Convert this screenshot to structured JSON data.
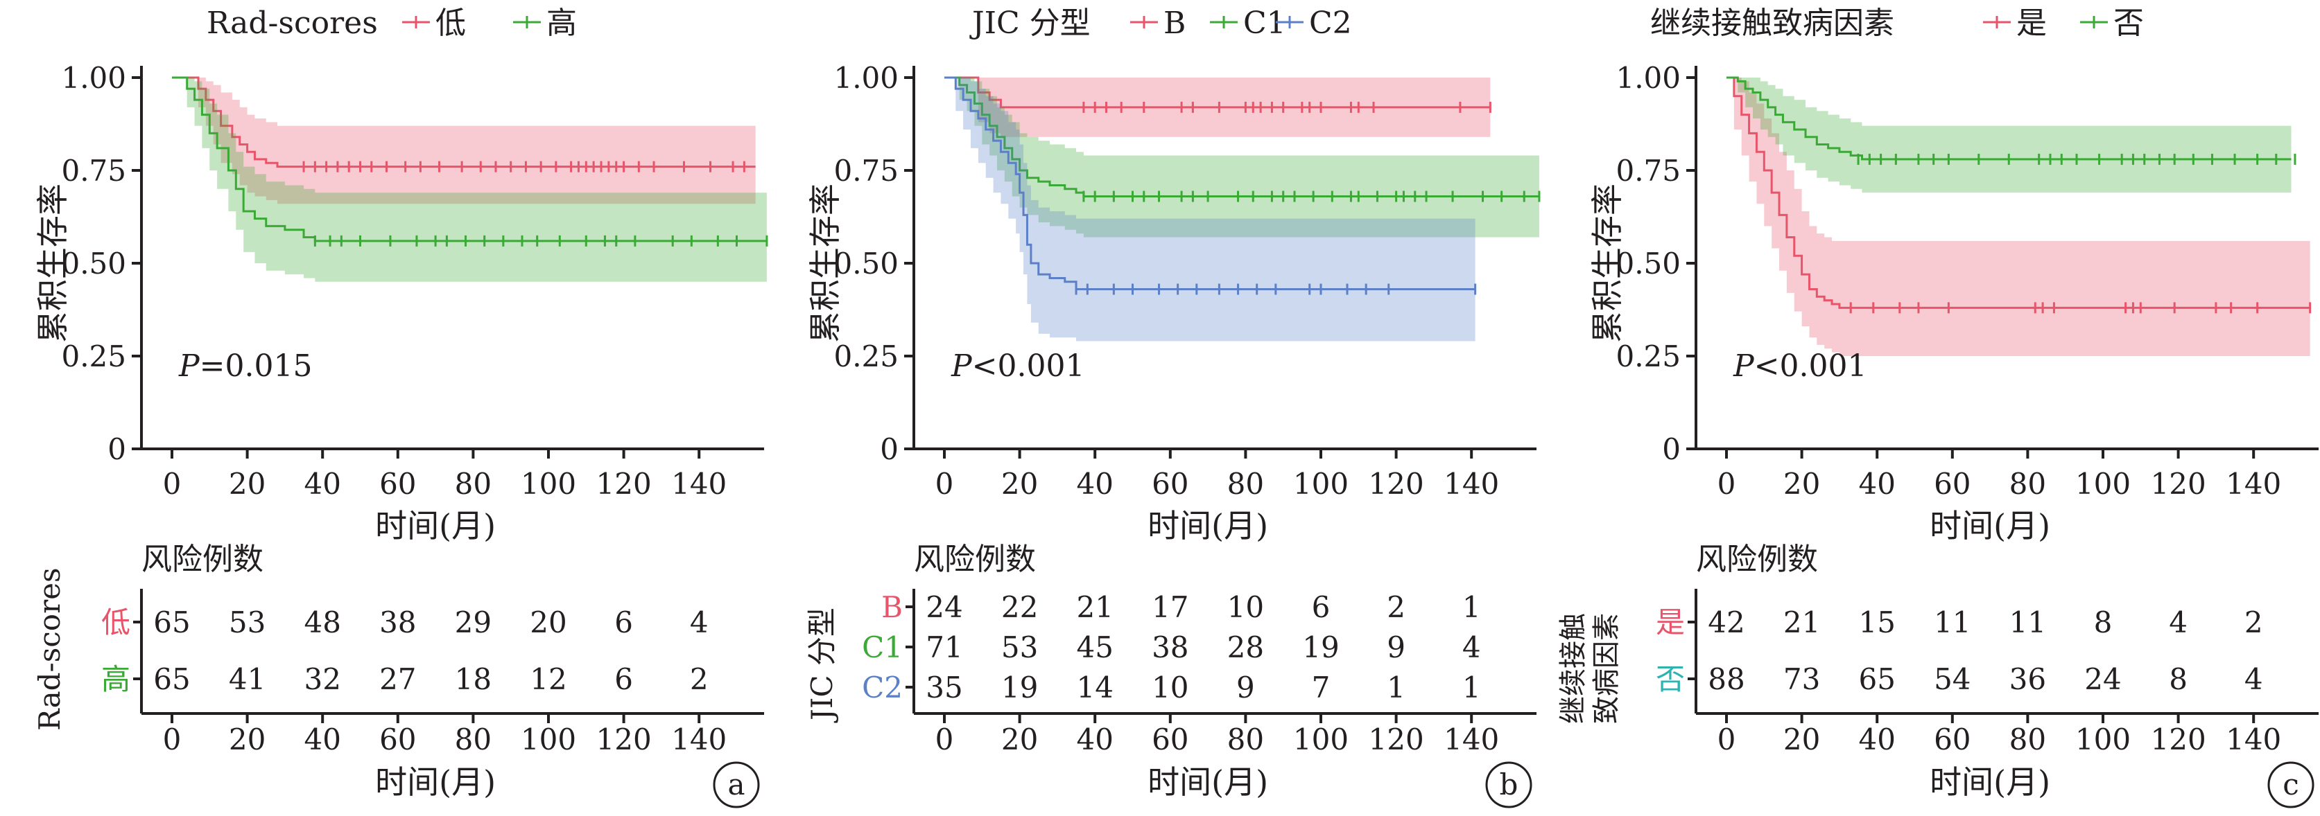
{
  "axis_common": {
    "ylabel": "累积生存率",
    "xlabel": "时间(月)",
    "risk_title": "风险例数",
    "y_ticks": [
      "1.00",
      "0.75",
      "0.50",
      "0.25",
      "0"
    ],
    "x_ticks": [
      "0",
      "20",
      "40",
      "60",
      "80",
      "100",
      "120",
      "140"
    ]
  },
  "panels": [
    {
      "legend_title": "Rad-scores",
      "p_text": "=0.015",
      "p_italic": "P",
      "panel_label": "a",
      "risk_side_label": "Rad-scores",
      "groups": [
        {
          "name": "低",
          "color": "#e8546a"
        },
        {
          "name": "高",
          "color": "#3aa935"
        }
      ],
      "risk_table": [
        {
          "group": "低",
          "color": "#e8546a",
          "counts": [
            65,
            53,
            48,
            38,
            29,
            20,
            6,
            4
          ]
        },
        {
          "group": "高",
          "color": "#3aa935",
          "counts": [
            65,
            41,
            32,
            27,
            18,
            12,
            6,
            2
          ]
        }
      ]
    },
    {
      "legend_title": "JIC 分型",
      "p_text": "<0.001",
      "p_italic": "P",
      "panel_label": "b",
      "risk_side_label": "JIC 分型",
      "groups": [
        {
          "name": "B",
          "color": "#e8546a"
        },
        {
          "name": "C1",
          "color": "#3aa935"
        },
        {
          "name": "C2",
          "color": "#5b80c8"
        }
      ],
      "risk_table": [
        {
          "group": "B",
          "color": "#e8546a",
          "counts": [
            24,
            22,
            21,
            17,
            10,
            6,
            2,
            1
          ]
        },
        {
          "group": "C1",
          "color": "#3aa935",
          "counts": [
            71,
            53,
            45,
            38,
            28,
            19,
            9,
            4
          ]
        },
        {
          "group": "C2",
          "color": "#5b80c8",
          "counts": [
            35,
            19,
            14,
            10,
            9,
            7,
            1,
            1
          ]
        }
      ]
    },
    {
      "legend_title": "继续接触致病因素",
      "p_text": "<0.001",
      "p_italic": "P",
      "panel_label": "c",
      "risk_side_label_1": "继续接触",
      "risk_side_label_2": "致病因素",
      "groups": [
        {
          "name": "是",
          "color": "#e8546a"
        },
        {
          "name": "否",
          "color": "#3aa935"
        }
      ],
      "risk_table": [
        {
          "group": "是",
          "color": "#e8546a",
          "counts": [
            42,
            21,
            15,
            11,
            11,
            8,
            4,
            2
          ]
        },
        {
          "group": "否",
          "color": "#2fb3b0",
          "counts": [
            88,
            73,
            65,
            54,
            36,
            24,
            8,
            4
          ]
        }
      ]
    }
  ],
  "chart_data": [
    {
      "type": "line",
      "title": "Rad-scores",
      "xlabel": "时间(月)",
      "ylabel": "累积生存率",
      "xlim": [
        0,
        155
      ],
      "ylim": [
        0,
        1
      ],
      "legend": "top",
      "series": [
        {
          "name": "低",
          "color": "#e8546a",
          "x": [
            0,
            5,
            7,
            9,
            11,
            13,
            16,
            18,
            20,
            22,
            25,
            28,
            155
          ],
          "y": [
            1.0,
            1.0,
            0.97,
            0.94,
            0.91,
            0.87,
            0.84,
            0.82,
            0.8,
            0.78,
            0.77,
            0.76,
            0.76
          ],
          "ci_upper": [
            1.0,
            1.0,
            1.0,
            0.99,
            0.98,
            0.96,
            0.94,
            0.92,
            0.9,
            0.89,
            0.88,
            0.87,
            0.87
          ],
          "ci_lower": [
            1.0,
            1.0,
            0.92,
            0.87,
            0.82,
            0.77,
            0.74,
            0.71,
            0.69,
            0.68,
            0.67,
            0.66,
            0.66
          ],
          "censor_x": [
            35,
            38,
            41,
            44,
            47,
            50,
            53,
            57,
            62,
            66,
            71,
            77,
            82,
            86,
            90,
            94,
            98,
            102,
            106,
            108,
            110,
            112,
            114,
            116,
            118,
            120,
            124,
            128,
            136,
            143,
            149,
            152
          ]
        },
        {
          "name": "高",
          "color": "#3aa935",
          "x": [
            0,
            4,
            6,
            8,
            10,
            12,
            15,
            17,
            19,
            22,
            25,
            30,
            35,
            38,
            158
          ],
          "y": [
            1.0,
            0.97,
            0.94,
            0.9,
            0.85,
            0.81,
            0.75,
            0.7,
            0.64,
            0.62,
            0.6,
            0.59,
            0.57,
            0.56,
            0.56
          ],
          "ci_upper": [
            1.0,
            1.0,
            0.99,
            0.97,
            0.93,
            0.9,
            0.85,
            0.8,
            0.76,
            0.74,
            0.72,
            0.71,
            0.7,
            0.69,
            0.69
          ],
          "ci_lower": [
            1.0,
            0.92,
            0.87,
            0.81,
            0.75,
            0.7,
            0.64,
            0.59,
            0.53,
            0.5,
            0.48,
            0.47,
            0.46,
            0.45,
            0.45
          ],
          "censor_x": [
            38,
            42,
            45,
            50,
            58,
            65,
            70,
            73,
            78,
            83,
            88,
            93,
            97,
            103,
            110,
            115,
            118,
            123,
            133,
            138,
            145,
            150,
            158
          ]
        }
      ],
      "y_ticks": [
        "1.00",
        "0.75",
        "0.50",
        "0.25",
        "0"
      ],
      "x_ticks": [
        0,
        20,
        40,
        60,
        80,
        100,
        120,
        140
      ],
      "annotation": "P=0.015"
    },
    {
      "type": "line",
      "title": "JIC 分型",
      "xlabel": "时间(月)",
      "ylabel": "累积生存率",
      "xlim": [
        0,
        158
      ],
      "ylim": [
        0,
        1
      ],
      "legend": "top",
      "series": [
        {
          "name": "B",
          "color": "#e8546a",
          "x": [
            0,
            6,
            9,
            12,
            15,
            145
          ],
          "y": [
            1.0,
            1.0,
            0.96,
            0.94,
            0.92,
            0.92
          ],
          "ci_upper": [
            1.0,
            1.0,
            1.0,
            1.0,
            1.0,
            1.0
          ],
          "ci_lower": [
            1.0,
            1.0,
            0.88,
            0.85,
            0.84,
            0.84
          ],
          "censor_x": [
            37,
            40,
            43,
            47,
            53,
            63,
            66,
            73,
            80,
            82,
            84,
            87,
            90,
            95,
            97,
            100,
            108,
            110,
            114,
            137,
            145
          ]
        },
        {
          "name": "C1",
          "color": "#3aa935",
          "x": [
            0,
            4,
            6,
            8,
            10,
            12,
            14,
            16,
            18,
            20,
            22,
            25,
            28,
            32,
            35,
            37,
            158
          ],
          "y": [
            1.0,
            0.98,
            0.96,
            0.93,
            0.9,
            0.87,
            0.84,
            0.81,
            0.78,
            0.75,
            0.73,
            0.72,
            0.71,
            0.7,
            0.69,
            0.68,
            0.68
          ],
          "ci_upper": [
            1.0,
            1.0,
            1.0,
            0.99,
            0.97,
            0.95,
            0.92,
            0.9,
            0.88,
            0.85,
            0.84,
            0.83,
            0.82,
            0.81,
            0.8,
            0.79,
            0.79
          ],
          "ci_lower": [
            1.0,
            0.94,
            0.91,
            0.87,
            0.82,
            0.79,
            0.75,
            0.72,
            0.68,
            0.65,
            0.63,
            0.61,
            0.6,
            0.59,
            0.58,
            0.57,
            0.57
          ],
          "censor_x": [
            37,
            40,
            45,
            50,
            53,
            57,
            63,
            66,
            70,
            78,
            82,
            87,
            90,
            93,
            98,
            103,
            108,
            110,
            115,
            120,
            122,
            125,
            128,
            135,
            143,
            148,
            154,
            158
          ]
        },
        {
          "name": "C2",
          "color": "#5b80c8",
          "x": [
            0,
            3,
            5,
            7,
            9,
            11,
            13,
            15,
            17,
            19,
            20,
            21,
            22,
            23,
            25,
            28,
            32,
            35,
            141
          ],
          "y": [
            1.0,
            0.97,
            0.94,
            0.91,
            0.89,
            0.86,
            0.83,
            0.8,
            0.77,
            0.74,
            0.69,
            0.63,
            0.55,
            0.5,
            0.47,
            0.46,
            0.45,
            0.43,
            0.43
          ],
          "ci_upper": [
            1.0,
            1.0,
            1.0,
            0.99,
            0.97,
            0.95,
            0.93,
            0.91,
            0.88,
            0.86,
            0.82,
            0.77,
            0.71,
            0.67,
            0.65,
            0.64,
            0.63,
            0.62,
            0.62
          ],
          "ci_lower": [
            1.0,
            0.91,
            0.86,
            0.81,
            0.77,
            0.73,
            0.69,
            0.66,
            0.62,
            0.58,
            0.53,
            0.47,
            0.39,
            0.34,
            0.31,
            0.3,
            0.3,
            0.29,
            0.29
          ],
          "censor_x": [
            35,
            38,
            45,
            50,
            57,
            62,
            67,
            73,
            78,
            83,
            88,
            97,
            100,
            107,
            112,
            118,
            141
          ]
        }
      ],
      "y_ticks": [
        "1.00",
        "0.75",
        "0.50",
        "0.25",
        "0"
      ],
      "x_ticks": [
        0,
        20,
        40,
        60,
        80,
        100,
        120,
        140
      ],
      "annotation": "P<0.001"
    },
    {
      "type": "line",
      "title": "继续接触致病因素",
      "xlabel": "时间(月)",
      "ylabel": "累积生存率",
      "xlim": [
        0,
        155
      ],
      "ylim": [
        0,
        1
      ],
      "legend": "top",
      "series": [
        {
          "name": "是",
          "color": "#e8546a",
          "x": [
            0,
            2,
            4,
            6,
            8,
            10,
            12,
            14,
            16,
            18,
            20,
            22,
            24,
            26,
            28,
            30,
            155
          ],
          "y": [
            1.0,
            0.95,
            0.9,
            0.85,
            0.8,
            0.75,
            0.69,
            0.63,
            0.57,
            0.52,
            0.47,
            0.43,
            0.41,
            0.4,
            0.39,
            0.38,
            0.38
          ],
          "ci_upper": [
            1.0,
            1.0,
            0.99,
            0.96,
            0.93,
            0.89,
            0.85,
            0.8,
            0.75,
            0.7,
            0.64,
            0.6,
            0.58,
            0.57,
            0.56,
            0.56,
            0.56
          ],
          "ci_lower": [
            1.0,
            0.86,
            0.79,
            0.72,
            0.66,
            0.6,
            0.54,
            0.48,
            0.42,
            0.37,
            0.33,
            0.3,
            0.28,
            0.27,
            0.26,
            0.25,
            0.25
          ],
          "censor_x": [
            33,
            39,
            46,
            51,
            59,
            82,
            84,
            87,
            106,
            108,
            110,
            119,
            130,
            134,
            141,
            155
          ]
        },
        {
          "name": "否",
          "color": "#3aa935",
          "x": [
            0,
            3,
            5,
            7,
            9,
            11,
            13,
            15,
            18,
            21,
            24,
            27,
            30,
            33,
            36,
            150
          ],
          "y": [
            1.0,
            0.99,
            0.97,
            0.96,
            0.94,
            0.92,
            0.9,
            0.88,
            0.86,
            0.84,
            0.82,
            0.81,
            0.8,
            0.79,
            0.78,
            0.78
          ],
          "ci_upper": [
            1.0,
            1.0,
            1.0,
            1.0,
            0.99,
            0.98,
            0.97,
            0.95,
            0.94,
            0.92,
            0.91,
            0.9,
            0.89,
            0.88,
            0.87,
            0.87
          ],
          "ci_lower": [
            1.0,
            0.96,
            0.92,
            0.89,
            0.86,
            0.84,
            0.82,
            0.79,
            0.77,
            0.75,
            0.73,
            0.72,
            0.71,
            0.7,
            0.69,
            0.69
          ],
          "censor_x": [
            35,
            38,
            41,
            45,
            51,
            55,
            59,
            67,
            75,
            83,
            86,
            89,
            93,
            99,
            105,
            108,
            111,
            115,
            119,
            124,
            129,
            135,
            141,
            146,
            151
          ]
        }
      ],
      "y_ticks": [
        "1.00",
        "0.75",
        "0.50",
        "0.25",
        "0"
      ],
      "x_ticks": [
        0,
        20,
        40,
        60,
        80,
        100,
        120,
        140
      ],
      "annotation": "P<0.001"
    }
  ]
}
